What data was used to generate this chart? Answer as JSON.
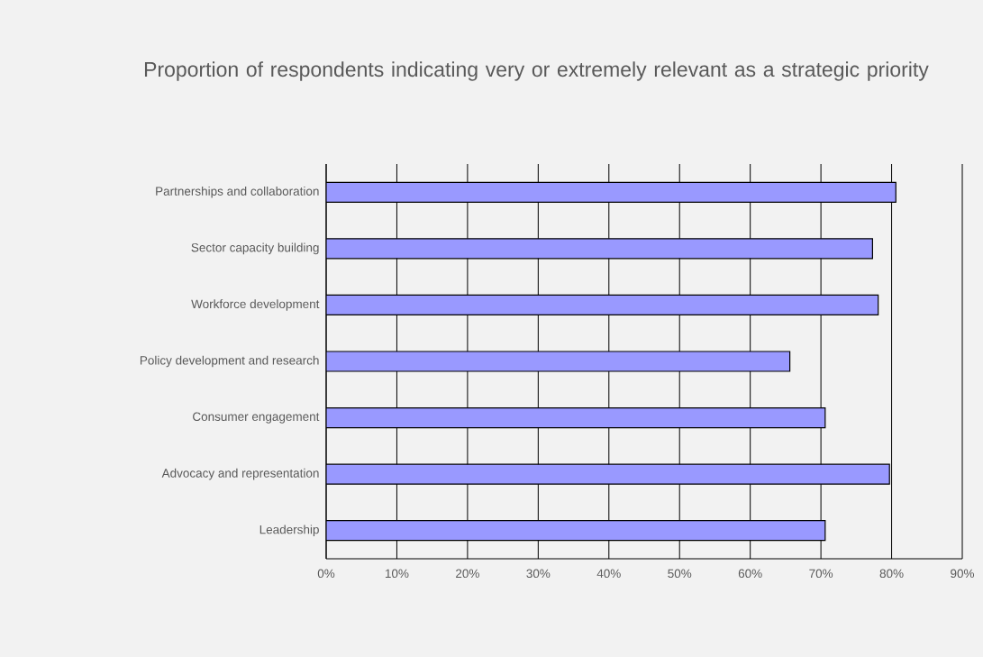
{
  "chart_data": {
    "type": "bar",
    "orientation": "horizontal",
    "title": "Proportion of respondents indicating very or extremely relevant as a strategic priority",
    "categories": [
      "Partnerships and collaboration",
      "Sector capacity building",
      "Workforce development",
      "Policy development and research",
      "Consumer engagement",
      "Advocacy and representation",
      "Leadership"
    ],
    "values": [
      80.6,
      77.3,
      78.1,
      65.6,
      70.6,
      79.7,
      70.6
    ],
    "color": "#9999ff",
    "xlim": [
      0,
      90
    ],
    "xticks": [
      {
        "value": 0,
        "label": "0%"
      },
      {
        "value": 10,
        "label": "10%"
      },
      {
        "value": 20,
        "label": "20%"
      },
      {
        "value": 30,
        "label": "30%"
      },
      {
        "value": 40,
        "label": "40%"
      },
      {
        "value": 50,
        "label": "50%"
      },
      {
        "value": 60,
        "label": "60%"
      },
      {
        "value": 70,
        "label": "70%"
      },
      {
        "value": 80,
        "label": "80%"
      },
      {
        "value": 90,
        "label": "90%"
      }
    ],
    "grid": "x"
  }
}
